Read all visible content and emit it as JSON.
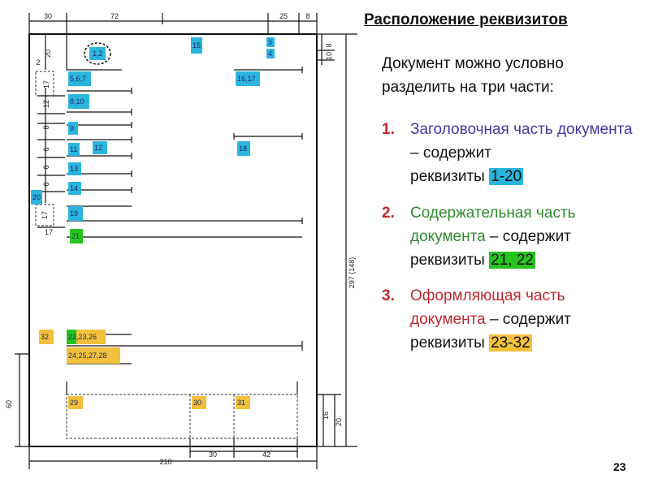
{
  "slide": {
    "title": "Расположение реквизитов",
    "intro": "Документ можно условно разделить на три части:",
    "parts": [
      {
        "number": "1.",
        "name": "Заголовочная часть документа",
        "name_color": "#3d3aa8",
        "dash": " – содержит",
        "prefix": "реквизиты ",
        "range": "1-20",
        "range_color": "#2bb5de"
      },
      {
        "number": "2.",
        "name": "Содержательная часть документа",
        "name_color": "#2e8a2e",
        "dash": " – содержит",
        "prefix": "реквизиты ",
        "range": "21, 22",
        "range_color": "#27c41f"
      },
      {
        "number": "3.",
        "name": "Оформляющая часть документа",
        "name_color": "#c0282c",
        "dash": " – содержит",
        "prefix": "реквизиты ",
        "range": "23-32",
        "range_color": "#f2c03a"
      }
    ],
    "page_number": "23"
  },
  "diagram": {
    "dimensions": [
      "30",
      "72",
      "25",
      "8",
      "20",
      "2",
      "17",
      "12",
      "8",
      "6",
      "6",
      "6",
      "17",
      "17",
      "8",
      "10",
      "60",
      "16",
      "20",
      "297 (148)",
      "30",
      "42",
      "210"
    ],
    "zones": [
      {
        "label": "1,2",
        "kind": "circle"
      },
      {
        "label": "15",
        "color": "#2bb5de"
      },
      {
        "label": "3",
        "color": "#2bb5de"
      },
      {
        "label": "4",
        "color": "#2bb5de"
      },
      {
        "label": "5,6,7",
        "color": "#2bb5de"
      },
      {
        "label": "16,17",
        "color": "#2bb5de"
      },
      {
        "label": "8,10",
        "color": "#2bb5de"
      },
      {
        "label": "9",
        "color": "#2bb5de"
      },
      {
        "label": "11",
        "color": "#2bb5de"
      },
      {
        "label": "12",
        "color": "#2bb5de"
      },
      {
        "label": "18",
        "color": "#2bb5de"
      },
      {
        "label": "13",
        "color": "#2bb5de"
      },
      {
        "label": "14",
        "color": "#2bb5de"
      },
      {
        "label": "20",
        "color": "#2bb5de"
      },
      {
        "label": "19",
        "color": "#2bb5de"
      },
      {
        "label": "21",
        "color": "#27c41f"
      },
      {
        "label": "32",
        "color": "#f2c03a"
      },
      {
        "label": "22,23,26",
        "color": "#f2c03a",
        "split_color": "#27c41f"
      },
      {
        "label": "24,25,27,28",
        "color": "#f2c03a"
      },
      {
        "label": "29",
        "color": "#f2c03a"
      },
      {
        "label": "30",
        "color": "#f2c03a"
      },
      {
        "label": "31",
        "color": "#f2c03a"
      }
    ]
  }
}
